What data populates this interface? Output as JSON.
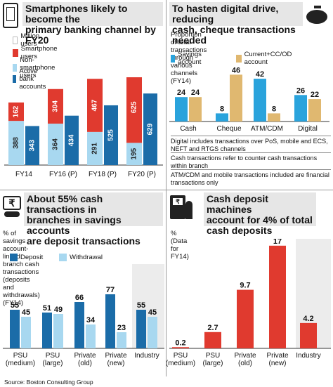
{
  "panel1": {
    "title_lines": [
      "Smartphones likely to become the",
      "primary banking channel by FY20"
    ],
    "unit": "Million users",
    "legend": [
      "Smartphone users",
      "Non-smartphone users",
      "Active bank accounts"
    ]
  },
  "panel2": {
    "title_lines": [
      "To hasten digital drive, reducing",
      "cash, cheque transactions needed"
    ],
    "subtitle_lines": [
      "Proportion of total transactions",
      "through various channels (FY14)"
    ],
    "legend": [
      "Savings account",
      "Current+CC/OD account"
    ],
    "notes": [
      "Digital includes transactions over PoS, mobile and ECS, NEFT and RTGS channels",
      "Cash transactions refer to counter cash transactions within branch",
      "ATM/CDM and mobile transactions included are financial transactions only"
    ]
  },
  "panel3": {
    "title_lines": [
      "About 55% cash transactions in",
      "branches in savings accounts",
      "are deposit transactions"
    ],
    "subtitle_lines": [
      "% of savings account-linked branch cash",
      "transactions (deposits and withdrawals) (FY14)"
    ],
    "legend": [
      "Deposit",
      "Withdrawal"
    ]
  },
  "panel4": {
    "title_lines": [
      "Cash deposit machines",
      "account for 4% of total",
      "cash deposits"
    ],
    "subtitle": "% (Data for FY14)"
  },
  "source": "Source: Boston Consulting Group",
  "colors": {
    "red": "#e03a2f",
    "lightblue": "#a8d8f0",
    "darkblue": "#1b6ca8",
    "cyan": "#2aa3dc",
    "tan": "#e0b870",
    "shade": "#ececec",
    "header": "#e6e6e6"
  },
  "chart_data": [
    {
      "type": "bar",
      "stacked_with_side_bar": true,
      "categories": [
        "FY14",
        "FY16 (P)",
        "FY18 (P)",
        "FY20 (P)"
      ],
      "series": [
        {
          "name": "Smartphone users",
          "values": [
            162,
            304,
            467,
            625
          ]
        },
        {
          "name": "Non-smartphone users",
          "values": [
            388,
            364,
            291,
            195
          ]
        },
        {
          "name": "Active bank accounts",
          "values": [
            343,
            434,
            525,
            629
          ]
        }
      ]
    },
    {
      "type": "bar",
      "categories": [
        "Cash",
        "Cheque",
        "ATM/CDM",
        "Digital"
      ],
      "series": [
        {
          "name": "Savings account",
          "values": [
            24,
            8,
            42,
            26
          ]
        },
        {
          "name": "Current+CC/OD account",
          "values": [
            24,
            46,
            8,
            22
          ]
        }
      ]
    },
    {
      "type": "bar",
      "categories": [
        "PSU (medium)",
        "PSU (large)",
        "Private (old)",
        "Private (new)",
        "Industry"
      ],
      "category_lines": [
        [
          "PSU",
          "(medium)"
        ],
        [
          "PSU",
          "(large)"
        ],
        [
          "Private",
          "(old)"
        ],
        [
          "Private",
          "(new)"
        ],
        [
          "Industry"
        ]
      ],
      "series": [
        {
          "name": "Deposit",
          "values": [
            55,
            51,
            66,
            77,
            55
          ]
        },
        {
          "name": "Withdrawal",
          "values": [
            45,
            49,
            34,
            23,
            45
          ]
        }
      ]
    },
    {
      "type": "bar",
      "categories": [
        "PSU (medium)",
        "PSU (large)",
        "Private (old)",
        "Private (new)",
        "Industry"
      ],
      "category_lines": [
        [
          "PSU",
          "(medium)"
        ],
        [
          "PSU",
          "(large)"
        ],
        [
          "Private",
          "(old)"
        ],
        [
          "Private",
          "(new)"
        ],
        [
          "Industry"
        ]
      ],
      "values": [
        0.2,
        2.7,
        9.7,
        17,
        4.2
      ]
    }
  ]
}
